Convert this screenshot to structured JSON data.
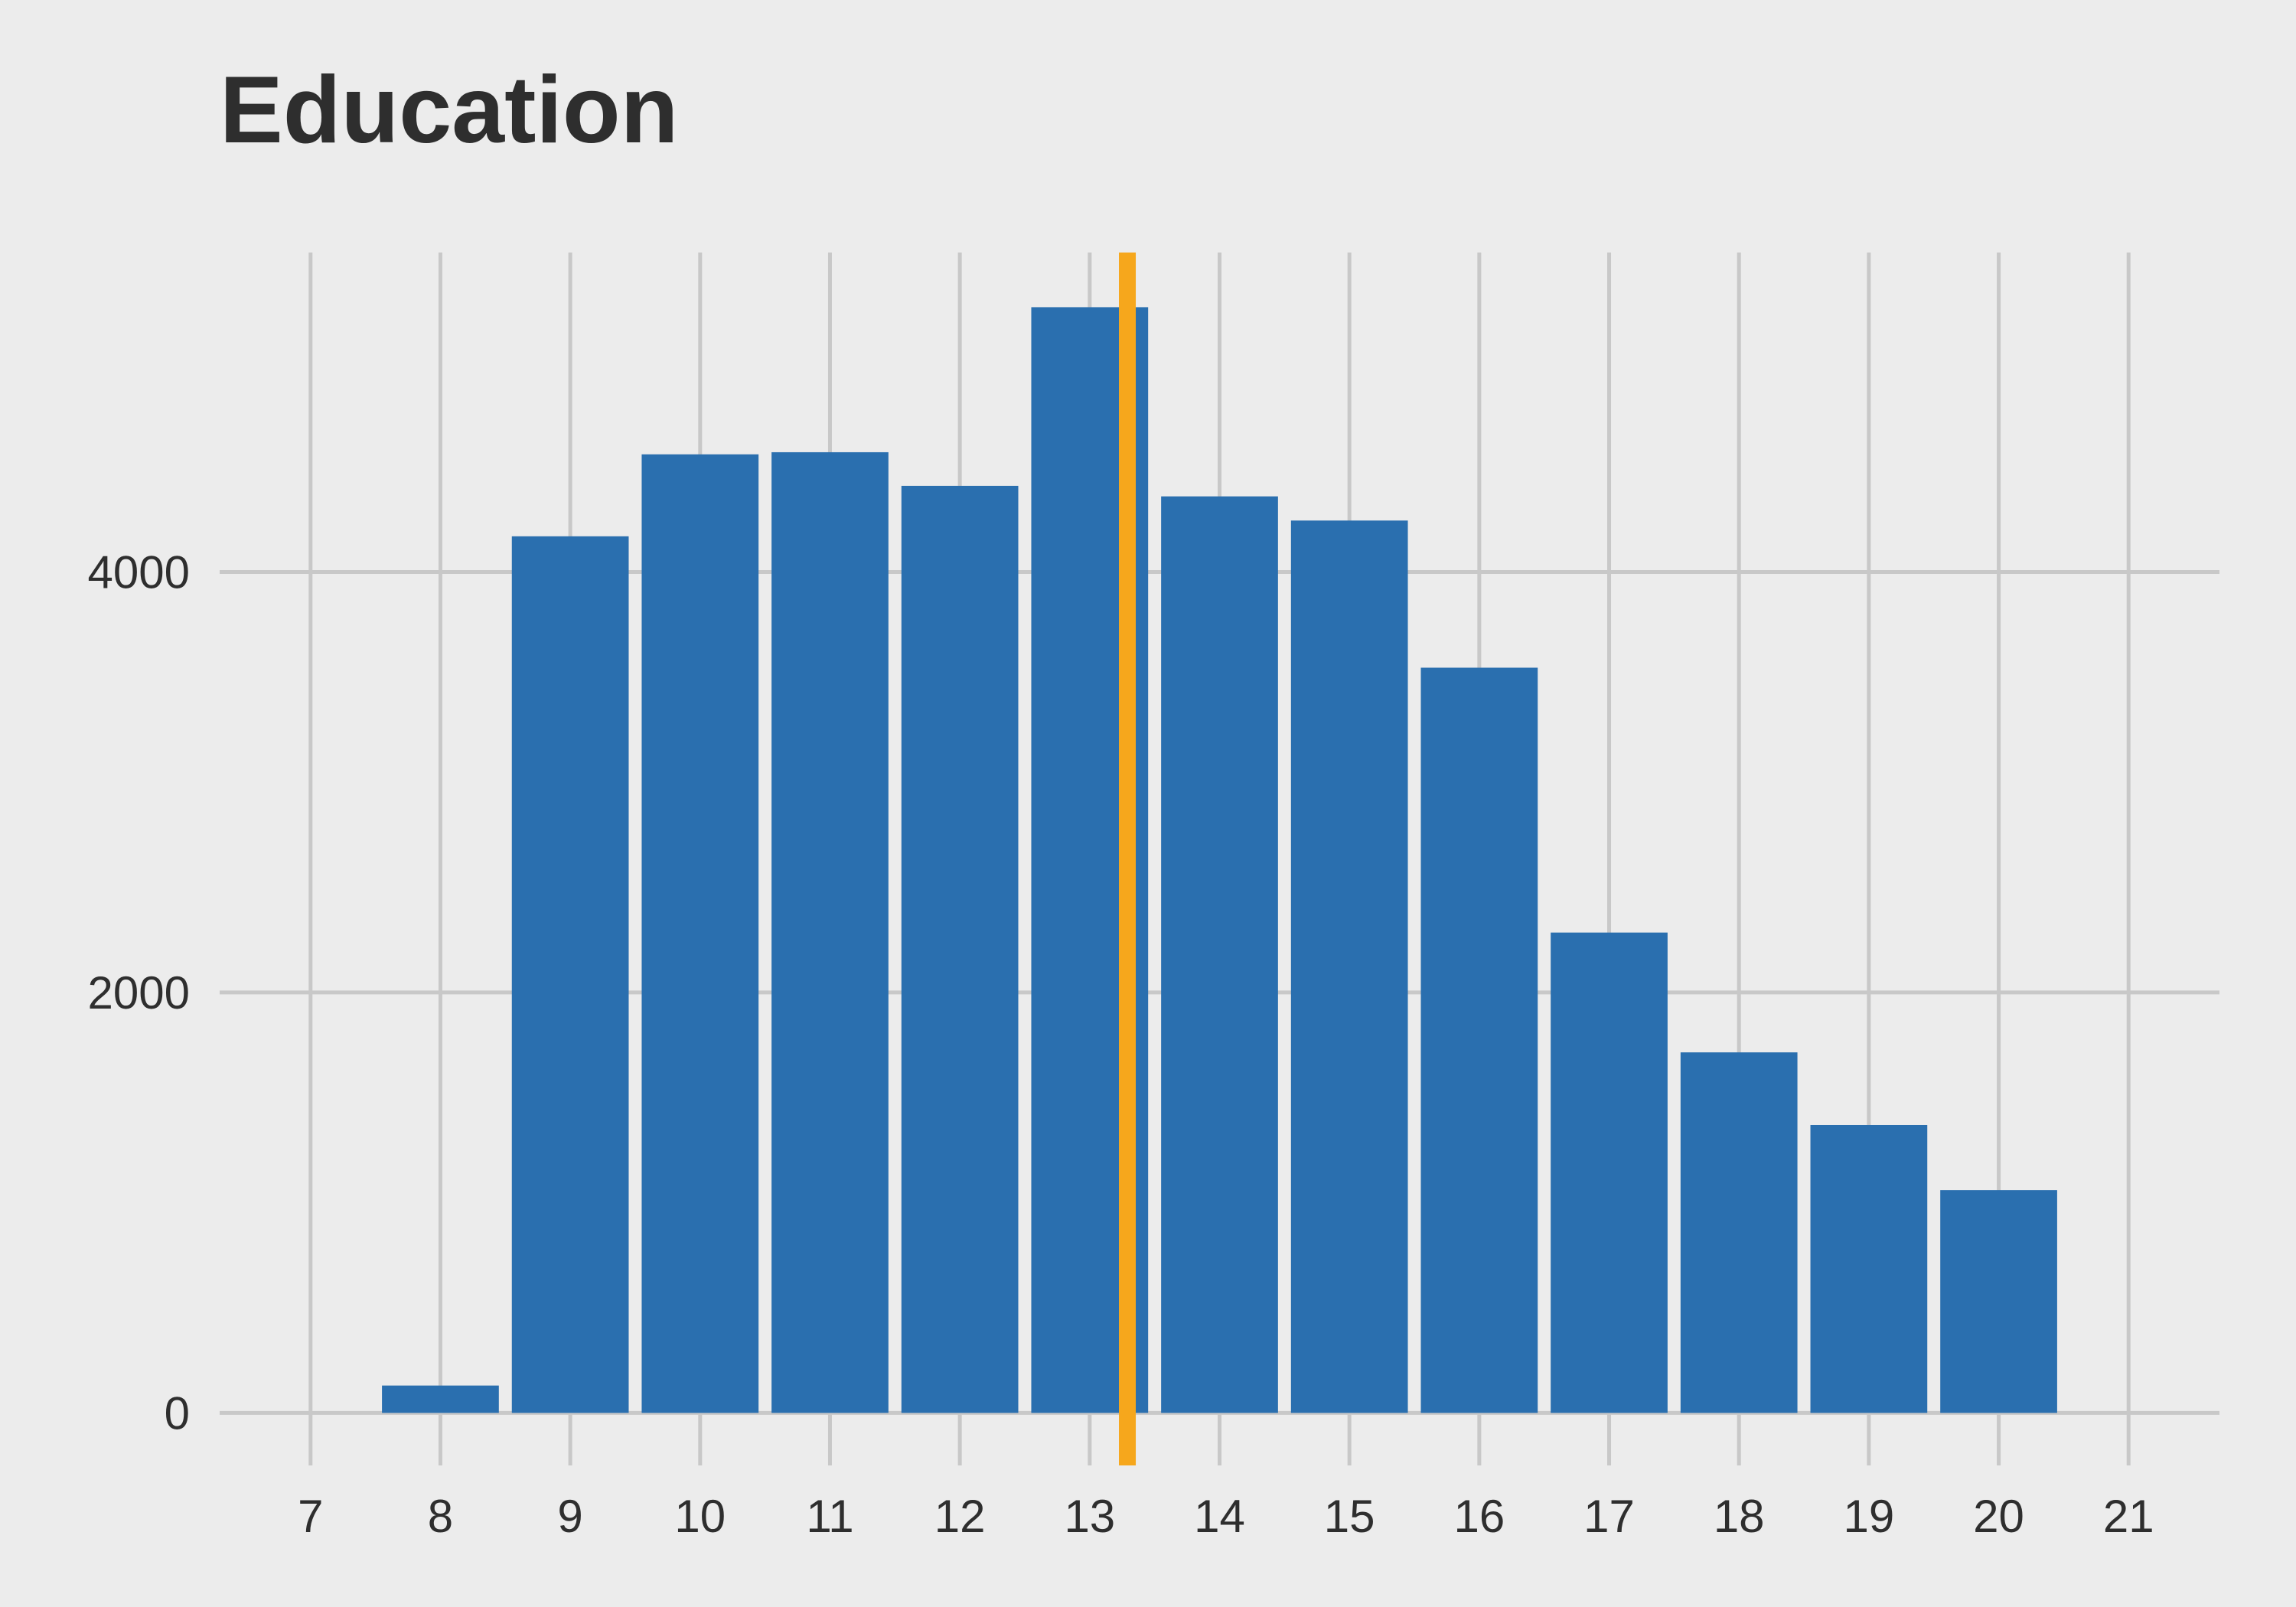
{
  "chart_data": {
    "type": "bar",
    "title": "Education",
    "xlabel": "",
    "ylabel": "",
    "x": [
      8,
      9,
      10,
      11,
      12,
      13,
      14,
      15,
      16,
      17,
      18,
      19,
      20
    ],
    "values": [
      130,
      4170,
      4560,
      4570,
      4410,
      5260,
      4360,
      4245,
      3545,
      2285,
      1715,
      1370,
      1060
    ],
    "x_ticks": [
      "7",
      "8",
      "9",
      "10",
      "11",
      "12",
      "13",
      "14",
      "15",
      "16",
      "17",
      "18",
      "19",
      "20",
      "21"
    ],
    "y_ticks": [
      "0",
      "2000",
      "4000"
    ],
    "xlim": [
      6.3,
      21.7
    ],
    "ylim": [
      -250,
      5520
    ],
    "reference_line": {
      "x": 13.29,
      "color": "#f6a71c"
    },
    "bar_color": "#2a6faf",
    "grid": true,
    "grid_color": "#c8c8c8"
  }
}
